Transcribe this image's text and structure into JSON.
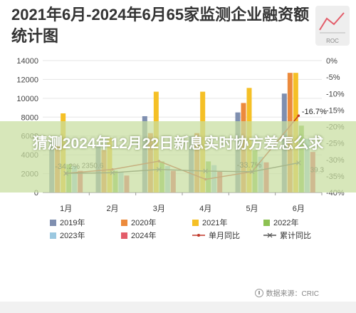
{
  "title": "2021年6月-2024年6月65家监测企业融资额统计图",
  "logo": {
    "icon": "line-chart-logo-icon",
    "sub": "ROC"
  },
  "source": "数据来源：CRIC",
  "overlay_text": "猜测2024年12月22日新息实时协方差怎么求",
  "chart_data": {
    "type": "bar",
    "categories": [
      "1月",
      "2月",
      "3月",
      "4月",
      "5月",
      "6月"
    ],
    "y_left": {
      "min": 0,
      "max": 14000,
      "ticks": [
        0,
        2000,
        4000,
        6000,
        8000,
        10000,
        12000,
        14000
      ]
    },
    "y_right": {
      "min": -40,
      "max": 0,
      "ticks": [
        "0%",
        "-5%",
        "-10%",
        "-15%",
        "-20%",
        "-25%",
        "-30%",
        "-35%",
        "-40%"
      ]
    },
    "series": [
      {
        "name": "2019年",
        "color": "#7f8fb0",
        "values": [
          5500,
          5000,
          8100,
          6000,
          8500,
          10500
        ]
      },
      {
        "name": "2020年",
        "color": "#ec8a3c",
        "values": [
          5000,
          4500,
          6300,
          6300,
          9500,
          12700
        ]
      },
      {
        "name": "2021年",
        "color": "#f5c026",
        "values": [
          8400,
          5800,
          10700,
          10700,
          11100,
          12700
        ]
      },
      {
        "name": "2022年",
        "color": "#8cc152",
        "values": [
          3000,
          2300,
          3300,
          3300,
          4500,
          7100
        ]
      },
      {
        "name": "2023年",
        "color": "#9bc8e0",
        "values": [
          2800,
          2200,
          2800,
          2900,
          3800,
          5700
        ]
      },
      {
        "name": "2024年",
        "color": "#e35d6a",
        "values": [
          2300,
          1800,
          2300,
          2200,
          3200,
          4300
        ]
      }
    ],
    "lines": [
      {
        "name": "单月同比",
        "color": "#c0392b",
        "marker": "line",
        "values": [
          -34.2,
          -33.0,
          -30.5,
          -36.0,
          -33.7,
          -16.7
        ]
      },
      {
        "name": "累计同比",
        "color": "#555555",
        "marker": "x",
        "values": [
          -34.2,
          -34.0,
          -33.0,
          -33.5,
          -33.7,
          -31.0
        ]
      }
    ],
    "annotations": [
      "-34.2%",
      "-33.7%",
      "-16.7%",
      "2350.6",
      "39.3"
    ]
  }
}
